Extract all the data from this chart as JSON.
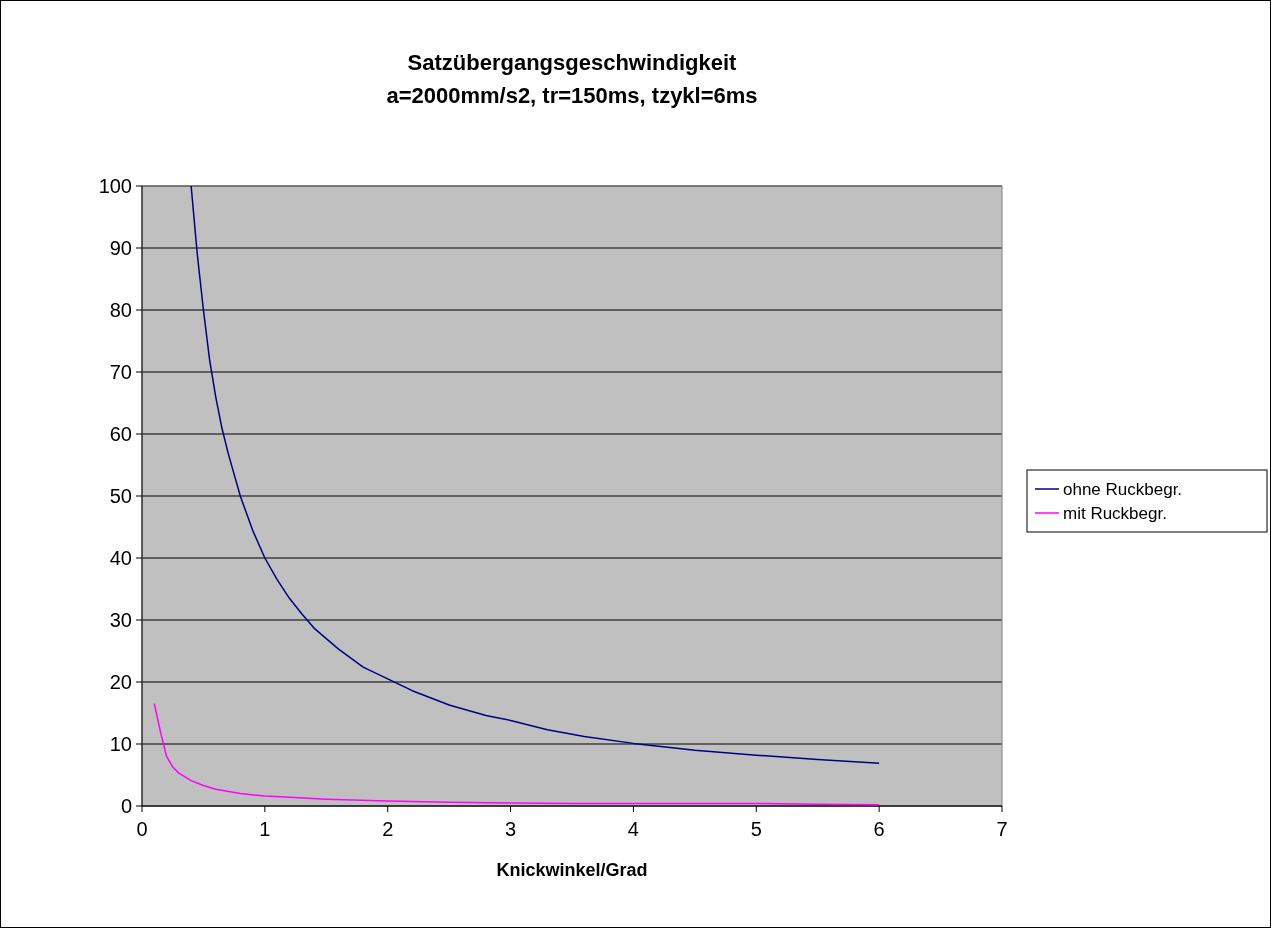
{
  "chart_data": {
    "type": "line",
    "title": "Satzübergangsgeschwindigkeit\na=2000mm/s2, tr=150ms, tzykl=6ms",
    "xlabel": "Knickwinkel/Grad",
    "xlim": [
      0,
      7
    ],
    "xticks": [
      0,
      1,
      2,
      3,
      4,
      5,
      6,
      7
    ],
    "ylim": [
      0,
      100
    ],
    "yticks": [
      0,
      10,
      20,
      30,
      40,
      50,
      60,
      70,
      80,
      90,
      100
    ],
    "grid": "y",
    "legend": "right",
    "marker": "none",
    "line_style": "solid",
    "series": [
      {
        "name": "ohne Ruckbegr.",
        "color": "#000080",
        "x": [
          0.4,
          0.45,
          0.5,
          0.55,
          0.6,
          0.65,
          0.7,
          0.8,
          0.9,
          1,
          1.1,
          1.2,
          1.3,
          1.4,
          1.6,
          1.8,
          2,
          2.2,
          2.5,
          2.8,
          3,
          3.3,
          3.6,
          4,
          4.5,
          5,
          5.5,
          6
        ],
        "values": [
          100,
          89,
          80,
          72,
          66,
          61,
          57,
          50,
          44.5,
          40,
          36.5,
          33.5,
          31,
          28.7,
          25.3,
          22.4,
          20.5,
          18.6,
          16.3,
          14.6,
          13.8,
          12.3,
          11.2,
          10.1,
          9.0,
          8.2,
          7.5,
          6.9
        ]
      },
      {
        "name": "mit Ruckbegr.",
        "color": "#ff00ff",
        "x": [
          0.1,
          0.15,
          0.2,
          0.25,
          0.3,
          0.4,
          0.5,
          0.6,
          0.8,
          1,
          1.2,
          1.5,
          2,
          2.5,
          3,
          3.5,
          4,
          5,
          5.5,
          6
        ],
        "values": [
          16.5,
          12,
          8,
          6.3,
          5.3,
          4.1,
          3.3,
          2.7,
          2,
          1.6,
          1.4,
          1.1,
          0.8,
          0.6,
          0.5,
          0.4,
          0.4,
          0.4,
          0.3,
          0.2
        ]
      }
    ]
  }
}
